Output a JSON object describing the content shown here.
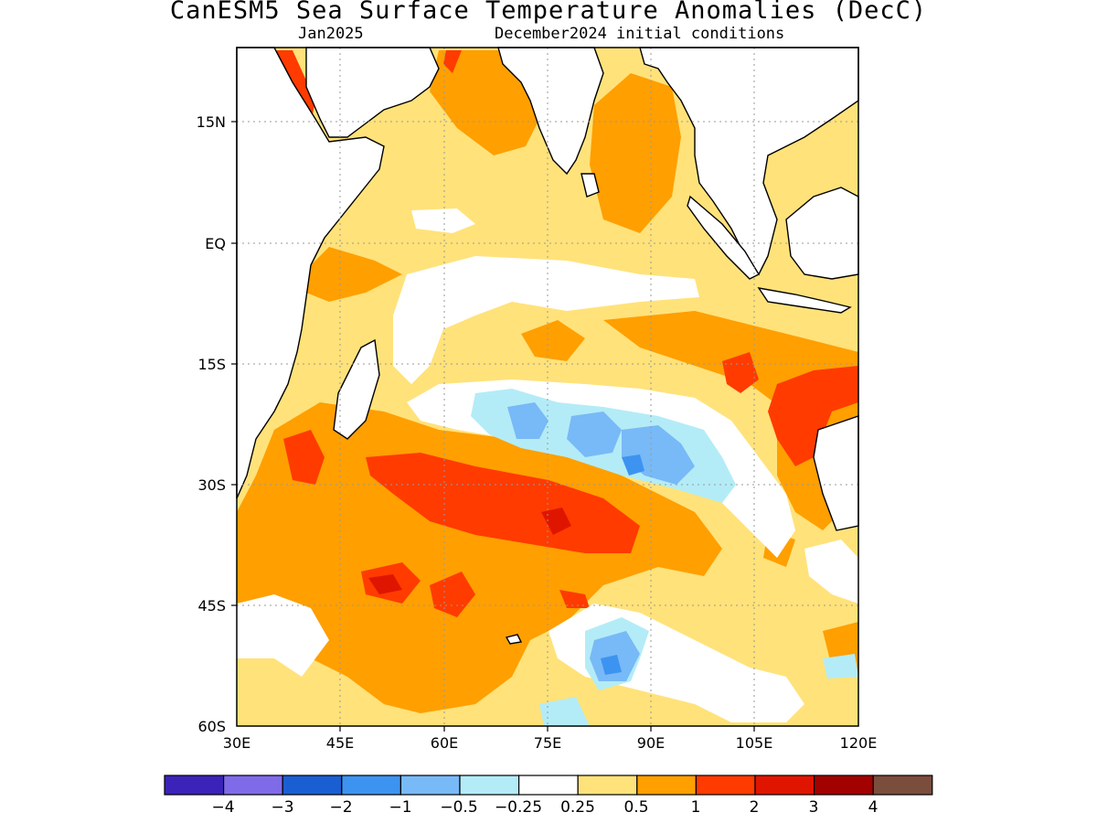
{
  "title": "CanESM5 Sea Surface Temperature Anomalies (DecC)",
  "subtitle_left": "Jan2025",
  "subtitle_right": "December2024 initial conditions",
  "map": {
    "lon_range": [
      30,
      120
    ],
    "lat_range": [
      -60,
      24
    ],
    "x_ticks": [
      "30E",
      "45E",
      "60E",
      "75E",
      "90E",
      "105E",
      "120E"
    ],
    "y_ticks": [
      "15N",
      "EQ",
      "15S",
      "30S",
      "45S",
      "60S"
    ],
    "grid": "dotted"
  },
  "colorbar": {
    "colors": [
      "#3b22b8",
      "#7f6be8",
      "#1a5fd2",
      "#3d93f0",
      "#78b9f7",
      "#b3ecf7",
      "#ffffff",
      "#ffe27a",
      "#ff9f00",
      "#ff3b00",
      "#e01500",
      "#a30000",
      "#7a4d3c"
    ],
    "labels": [
      "−4",
      "−3",
      "−2",
      "−1",
      "−0.5",
      "−0.25",
      "0.25",
      "0.5",
      "1",
      "2",
      "3",
      "4"
    ]
  }
}
